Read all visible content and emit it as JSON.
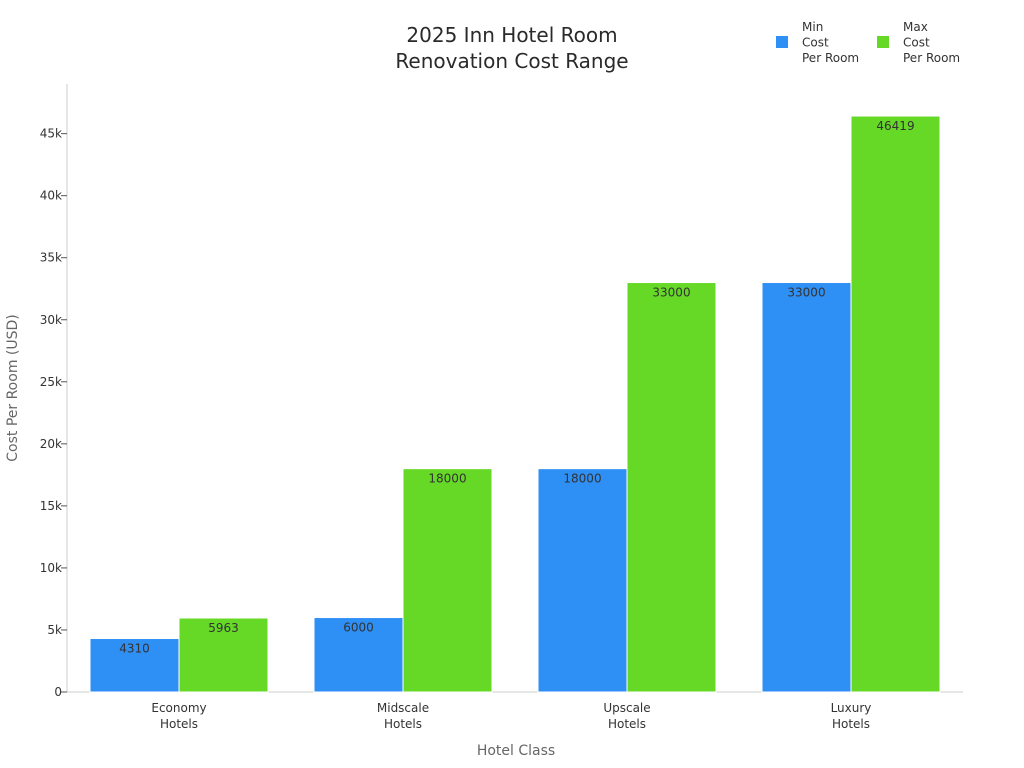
{
  "chart_data": {
    "type": "bar",
    "title_lines": [
      "2025 Inn Hotel Room",
      "Renovation Cost Range"
    ],
    "xlabel": "Hotel Class",
    "ylabel": "Cost Per Room (USD)",
    "categories": [
      [
        "Economy",
        "Hotels"
      ],
      [
        "Midscale",
        "Hotels"
      ],
      [
        "Upscale",
        "Hotels"
      ],
      [
        "Luxury",
        "Hotels"
      ]
    ],
    "series": [
      {
        "name_lines": [
          "Min",
          "Cost",
          "Per Room"
        ],
        "color": "#2e8ff5",
        "values": [
          4310,
          6000,
          18000,
          33000
        ]
      },
      {
        "name_lines": [
          "Max",
          "Cost",
          "Per Room"
        ],
        "color": "#66d926",
        "values": [
          5963,
          18000,
          33000,
          46419
        ]
      }
    ],
    "ylim": [
      0,
      49000
    ],
    "yticks": [
      0,
      5000,
      10000,
      15000,
      20000,
      25000,
      30000,
      35000,
      40000,
      45000
    ],
    "ytick_labels": [
      "0",
      "5k",
      "10k",
      "15k",
      "20k",
      "25k",
      "30k",
      "35k",
      "40k",
      "45k"
    ],
    "legend_position": "top-right",
    "grid": false
  }
}
